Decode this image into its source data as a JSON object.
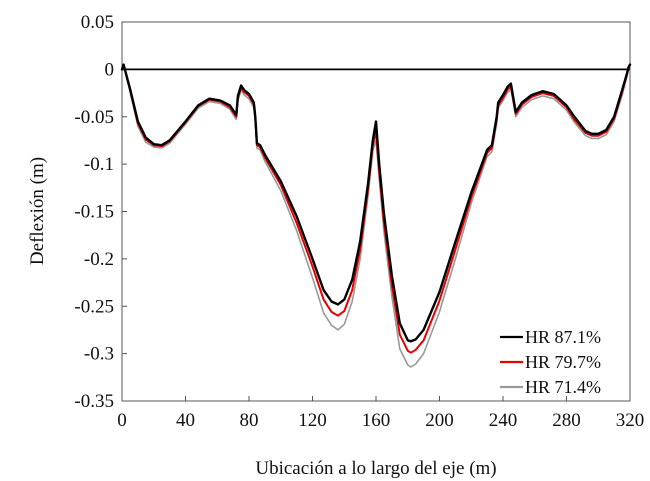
{
  "chart_data": {
    "type": "line",
    "title": "",
    "xlabel": "Ubicación a lo largo del eje (m)",
    "ylabel": "Deflexión (m)",
    "xlim": [
      0,
      320
    ],
    "ylim": [
      -0.35,
      0.05
    ],
    "xticks": [
      0,
      40,
      80,
      120,
      160,
      200,
      240,
      280,
      320
    ],
    "xtick_labels": [
      "0",
      "40",
      "80",
      "120",
      "160",
      "200",
      "240",
      "280",
      "320"
    ],
    "yticks": [
      0.05,
      0,
      -0.05,
      -0.1,
      -0.15,
      -0.2,
      -0.25,
      -0.3,
      -0.35
    ],
    "ytick_labels": [
      "0.05",
      "0",
      "-0.05",
      "-0.1",
      "-0.15",
      "-0.2",
      "-0.25",
      "-0.3",
      "-0.35"
    ],
    "grid": false,
    "legend_position": "bottom-right",
    "baseline": 0,
    "x": [
      0,
      1,
      5,
      10,
      15,
      20,
      25,
      30,
      40,
      48,
      55,
      62,
      68,
      72,
      73,
      75,
      77,
      80,
      83,
      84,
      85,
      87,
      90,
      100,
      110,
      120,
      127,
      132,
      136,
      140,
      145,
      150,
      155,
      158,
      160,
      162,
      165,
      170,
      175,
      180,
      182,
      185,
      190,
      200,
      210,
      220,
      230,
      233,
      235,
      236,
      237,
      240,
      243,
      245,
      247,
      248,
      252,
      258,
      265,
      272,
      280,
      285,
      292,
      296,
      300,
      305,
      310,
      315,
      318,
      319,
      320
    ],
    "series": [
      {
        "name": "HR 87.1%",
        "color": "#000000",
        "values": [
          0,
          0.005,
          -0.02,
          -0.055,
          -0.072,
          -0.079,
          -0.08,
          -0.075,
          -0.055,
          -0.038,
          -0.031,
          -0.033,
          -0.038,
          -0.048,
          -0.028,
          -0.017,
          -0.022,
          -0.026,
          -0.035,
          -0.05,
          -0.078,
          -0.08,
          -0.09,
          -0.118,
          -0.155,
          -0.2,
          -0.233,
          -0.245,
          -0.248,
          -0.243,
          -0.222,
          -0.182,
          -0.12,
          -0.075,
          -0.055,
          -0.1,
          -0.152,
          -0.218,
          -0.268,
          -0.286,
          -0.287,
          -0.285,
          -0.275,
          -0.235,
          -0.182,
          -0.13,
          -0.085,
          -0.08,
          -0.06,
          -0.05,
          -0.035,
          -0.027,
          -0.018,
          -0.015,
          -0.035,
          -0.045,
          -0.035,
          -0.027,
          -0.023,
          -0.026,
          -0.038,
          -0.05,
          -0.065,
          -0.068,
          -0.068,
          -0.064,
          -0.05,
          -0.022,
          -0.005,
          0.002,
          0.005
        ]
      },
      {
        "name": "HR 79.7%",
        "color": "#e60000",
        "values": [
          0,
          0.005,
          -0.021,
          -0.057,
          -0.074,
          -0.08,
          -0.081,
          -0.076,
          -0.056,
          -0.039,
          -0.032,
          -0.034,
          -0.04,
          -0.05,
          -0.03,
          -0.019,
          -0.024,
          -0.028,
          -0.037,
          -0.052,
          -0.08,
          -0.082,
          -0.093,
          -0.122,
          -0.162,
          -0.208,
          -0.243,
          -0.256,
          -0.26,
          -0.255,
          -0.233,
          -0.19,
          -0.126,
          -0.08,
          -0.065,
          -0.108,
          -0.161,
          -0.228,
          -0.28,
          -0.297,
          -0.299,
          -0.296,
          -0.286,
          -0.244,
          -0.19,
          -0.135,
          -0.088,
          -0.083,
          -0.063,
          -0.053,
          -0.038,
          -0.03,
          -0.021,
          -0.018,
          -0.037,
          -0.047,
          -0.037,
          -0.029,
          -0.025,
          -0.028,
          -0.04,
          -0.053,
          -0.067,
          -0.07,
          -0.07,
          -0.066,
          -0.052,
          -0.024,
          -0.006,
          0.001,
          0.005
        ]
      },
      {
        "name": "HR 71.4%",
        "color": "#999999",
        "values": [
          0,
          0.004,
          -0.023,
          -0.06,
          -0.077,
          -0.082,
          -0.083,
          -0.078,
          -0.058,
          -0.041,
          -0.034,
          -0.036,
          -0.042,
          -0.053,
          -0.033,
          -0.022,
          -0.027,
          -0.031,
          -0.04,
          -0.055,
          -0.083,
          -0.085,
          -0.097,
          -0.128,
          -0.17,
          -0.22,
          -0.257,
          -0.27,
          -0.275,
          -0.269,
          -0.245,
          -0.2,
          -0.133,
          -0.086,
          -0.075,
          -0.115,
          -0.171,
          -0.24,
          -0.295,
          -0.312,
          -0.314,
          -0.311,
          -0.3,
          -0.256,
          -0.2,
          -0.141,
          -0.092,
          -0.087,
          -0.067,
          -0.057,
          -0.041,
          -0.033,
          -0.024,
          -0.021,
          -0.04,
          -0.05,
          -0.04,
          -0.032,
          -0.028,
          -0.031,
          -0.043,
          -0.056,
          -0.07,
          -0.073,
          -0.073,
          -0.069,
          -0.055,
          -0.027,
          -0.008,
          0,
          0.005
        ]
      }
    ]
  }
}
